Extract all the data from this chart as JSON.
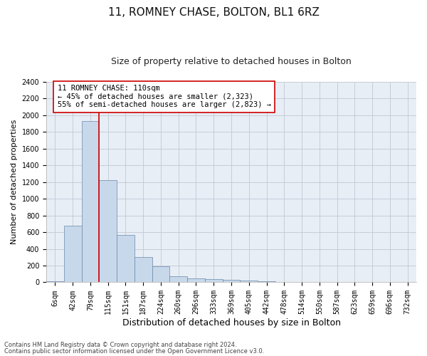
{
  "title": "11, ROMNEY CHASE, BOLTON, BL1 6RZ",
  "subtitle": "Size of property relative to detached houses in Bolton",
  "xlabel": "Distribution of detached houses by size in Bolton",
  "ylabel": "Number of detached properties",
  "categories": [
    "6sqm",
    "42sqm",
    "79sqm",
    "115sqm",
    "151sqm",
    "187sqm",
    "224sqm",
    "260sqm",
    "296sqm",
    "333sqm",
    "369sqm",
    "405sqm",
    "442sqm",
    "478sqm",
    "514sqm",
    "550sqm",
    "587sqm",
    "623sqm",
    "659sqm",
    "696sqm",
    "732sqm"
  ],
  "values": [
    10,
    680,
    1930,
    1220,
    570,
    300,
    195,
    75,
    45,
    40,
    30,
    25,
    10,
    8,
    5,
    3,
    2,
    1,
    1,
    1,
    1
  ],
  "bar_color": "#c8d8eb",
  "bar_edge_color": "#6888aa",
  "vline_color": "#cc0000",
  "vline_index": 2.5,
  "annotation_text": "11 ROMNEY CHASE: 110sqm\n← 45% of detached houses are smaller (2,323)\n55% of semi-detached houses are larger (2,823) →",
  "annotation_box_facecolor": "#ffffff",
  "annotation_box_edgecolor": "#cc0000",
  "ylim": [
    0,
    2400
  ],
  "yticks": [
    0,
    200,
    400,
    600,
    800,
    1000,
    1200,
    1400,
    1600,
    1800,
    2000,
    2200,
    2400
  ],
  "footer1": "Contains HM Land Registry data © Crown copyright and database right 2024.",
  "footer2": "Contains public sector information licensed under the Open Government Licence v3.0.",
  "fig_bg_color": "#ffffff",
  "plot_bg_color": "#e8eef5",
  "grid_color": "#c0c8d4",
  "title_fontsize": 11,
  "subtitle_fontsize": 9,
  "xlabel_fontsize": 9,
  "ylabel_fontsize": 8,
  "tick_fontsize": 7,
  "footer_fontsize": 6,
  "annotation_fontsize": 7.5
}
